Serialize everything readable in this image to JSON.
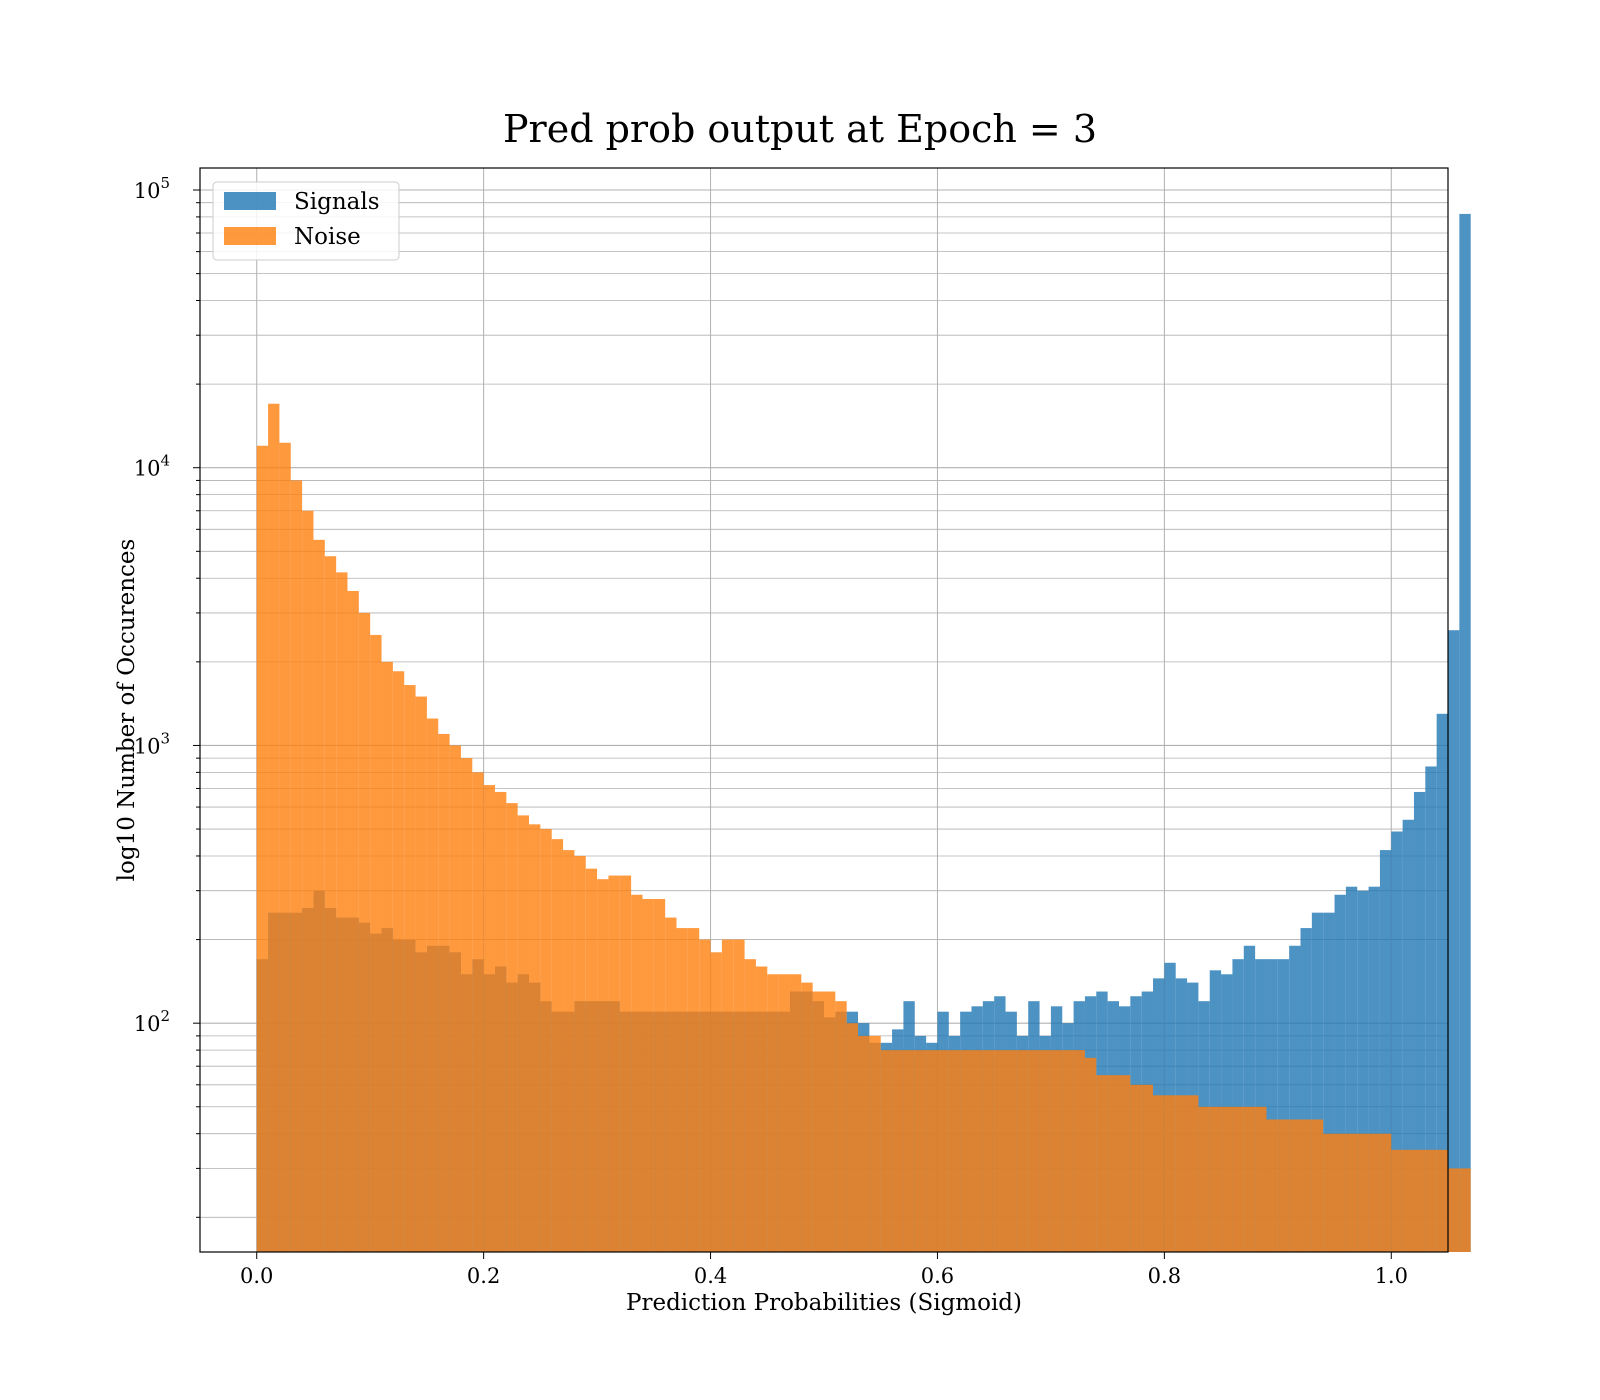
{
  "chart_data": {
    "type": "histogram",
    "title": "Pred prob output at Epoch = 3",
    "xlabel": "Prediction Probabilities (Sigmoid)",
    "ylabel": "log10 Number of Occurences",
    "xlim": [
      -0.05,
      1.05
    ],
    "ylim": [
      15,
      120000
    ],
    "yscale": "log",
    "grid": true,
    "legend_position": "top-left",
    "bin_width": 0.01,
    "x_ticks": [
      "0.0",
      "0.2",
      "0.4",
      "0.6",
      "0.8",
      "1.0"
    ],
    "x_tick_values": [
      0,
      0.2,
      0.4,
      0.6,
      0.8,
      1.0
    ],
    "y_ticks": [
      {
        "base": "10",
        "exp": "2",
        "value": 100
      },
      {
        "base": "10",
        "exp": "3",
        "value": 1000
      },
      {
        "base": "10",
        "exp": "4",
        "value": 10000
      },
      {
        "base": "10",
        "exp": "5",
        "value": 100000
      }
    ],
    "series": [
      {
        "name": "Signals",
        "color": "#1f77b4",
        "values": [
          170,
          250,
          250,
          250,
          260,
          300,
          260,
          240,
          240,
          230,
          210,
          220,
          200,
          200,
          180,
          190,
          190,
          180,
          150,
          170,
          150,
          160,
          140,
          150,
          140,
          120,
          110,
          110,
          120,
          120,
          120,
          120,
          110,
          110,
          110,
          110,
          110,
          110,
          110,
          110,
          110,
          110,
          110,
          110,
          110,
          110,
          110,
          130,
          130,
          120,
          105,
          110,
          110,
          100,
          85,
          85,
          95,
          120,
          90,
          85,
          110,
          90,
          110,
          115,
          120,
          125,
          110,
          90,
          120,
          90,
          115,
          100,
          120,
          125,
          130,
          120,
          115,
          125,
          130,
          145,
          165,
          145,
          140,
          120,
          155,
          150,
          170,
          190,
          170,
          170,
          170,
          190,
          220,
          250,
          250,
          290,
          310,
          300,
          310,
          420,
          490,
          540,
          680,
          840,
          1300,
          2600,
          82000
        ]
      },
      {
        "name": "Noise",
        "color": "#ff7f0e",
        "values": [
          12000,
          17000,
          12300,
          9000,
          7000,
          5500,
          4800,
          4200,
          3600,
          3000,
          2500,
          2000,
          1850,
          1650,
          1500,
          1250,
          1100,
          1000,
          900,
          800,
          720,
          680,
          620,
          560,
          520,
          500,
          460,
          420,
          400,
          360,
          330,
          340,
          340,
          290,
          280,
          280,
          240,
          220,
          220,
          200,
          180,
          200,
          200,
          170,
          160,
          150,
          150,
          150,
          140,
          130,
          130,
          120,
          100,
          90,
          90,
          80,
          80,
          80,
          80,
          80,
          80,
          80,
          80,
          80,
          80,
          80,
          80,
          80,
          80,
          80,
          80,
          80,
          80,
          75,
          65,
          65,
          65,
          60,
          60,
          55,
          55,
          55,
          55,
          50,
          50,
          50,
          50,
          50,
          50,
          45,
          45,
          45,
          45,
          45,
          40,
          40,
          40,
          40,
          40,
          40,
          35,
          35,
          35,
          35,
          35,
          30,
          30
        ]
      }
    ]
  }
}
